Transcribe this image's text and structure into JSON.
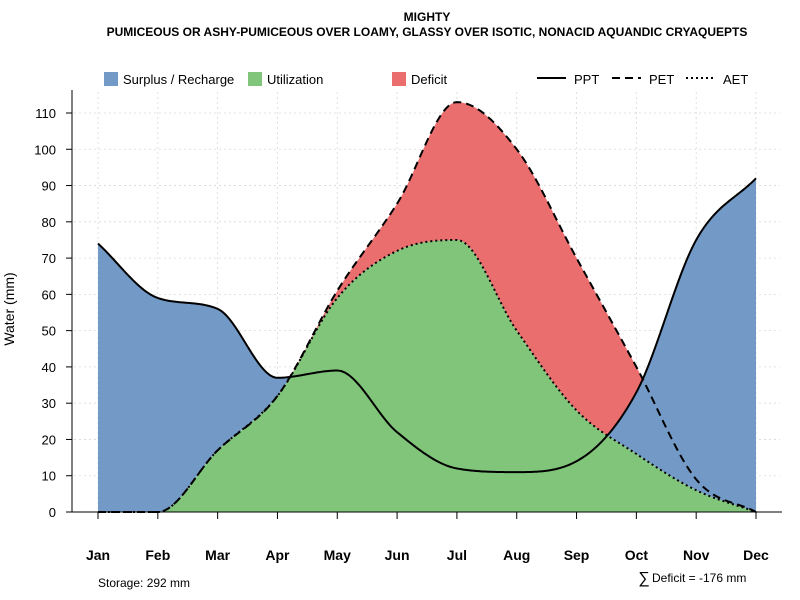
{
  "chart_data": {
    "type": "area",
    "title": "MIGHTY",
    "subtitle": "PUMICEOUS OR ASHY-PUMICEOUS OVER LOAMY, GLASSY OVER ISOTIC, NONACID AQUANDIC CRYAQUEPTS",
    "ylabel": "Water (mm)",
    "xlabel": "",
    "ylim": [
      0,
      115
    ],
    "yticks": [
      0,
      10,
      20,
      30,
      40,
      50,
      60,
      70,
      80,
      90,
      100,
      110
    ],
    "categories": [
      "Jan",
      "Feb",
      "Mar",
      "Apr",
      "May",
      "Jun",
      "Jul",
      "Aug",
      "Sep",
      "Oct",
      "Nov",
      "Dec"
    ],
    "grid": true,
    "series": [
      {
        "name": "PPT",
        "style": "solid",
        "values": [
          74,
          59,
          56,
          37,
          39,
          22,
          12,
          11,
          14,
          33,
          75,
          92
        ]
      },
      {
        "name": "PET",
        "style": "dashed",
        "values": [
          0,
          0,
          17,
          32,
          61,
          85,
          113,
          100,
          70,
          40,
          9,
          0
        ]
      },
      {
        "name": "AET",
        "style": "dotted",
        "values": [
          0,
          0,
          17,
          32,
          59,
          72,
          75,
          50,
          28,
          16,
          6,
          0
        ]
      }
    ],
    "areas": [
      {
        "name": "Surplus / Recharge",
        "color": "#7399C6"
      },
      {
        "name": "Utilization",
        "color": "#80C57A"
      },
      {
        "name": "Deficit",
        "color": "#EB6E6F"
      }
    ],
    "legend": {
      "position": "top"
    },
    "annotations": {
      "storage": "Storage: 292 mm",
      "deficit_symbol": "∑",
      "deficit": "Deficit = -176 mm"
    }
  }
}
